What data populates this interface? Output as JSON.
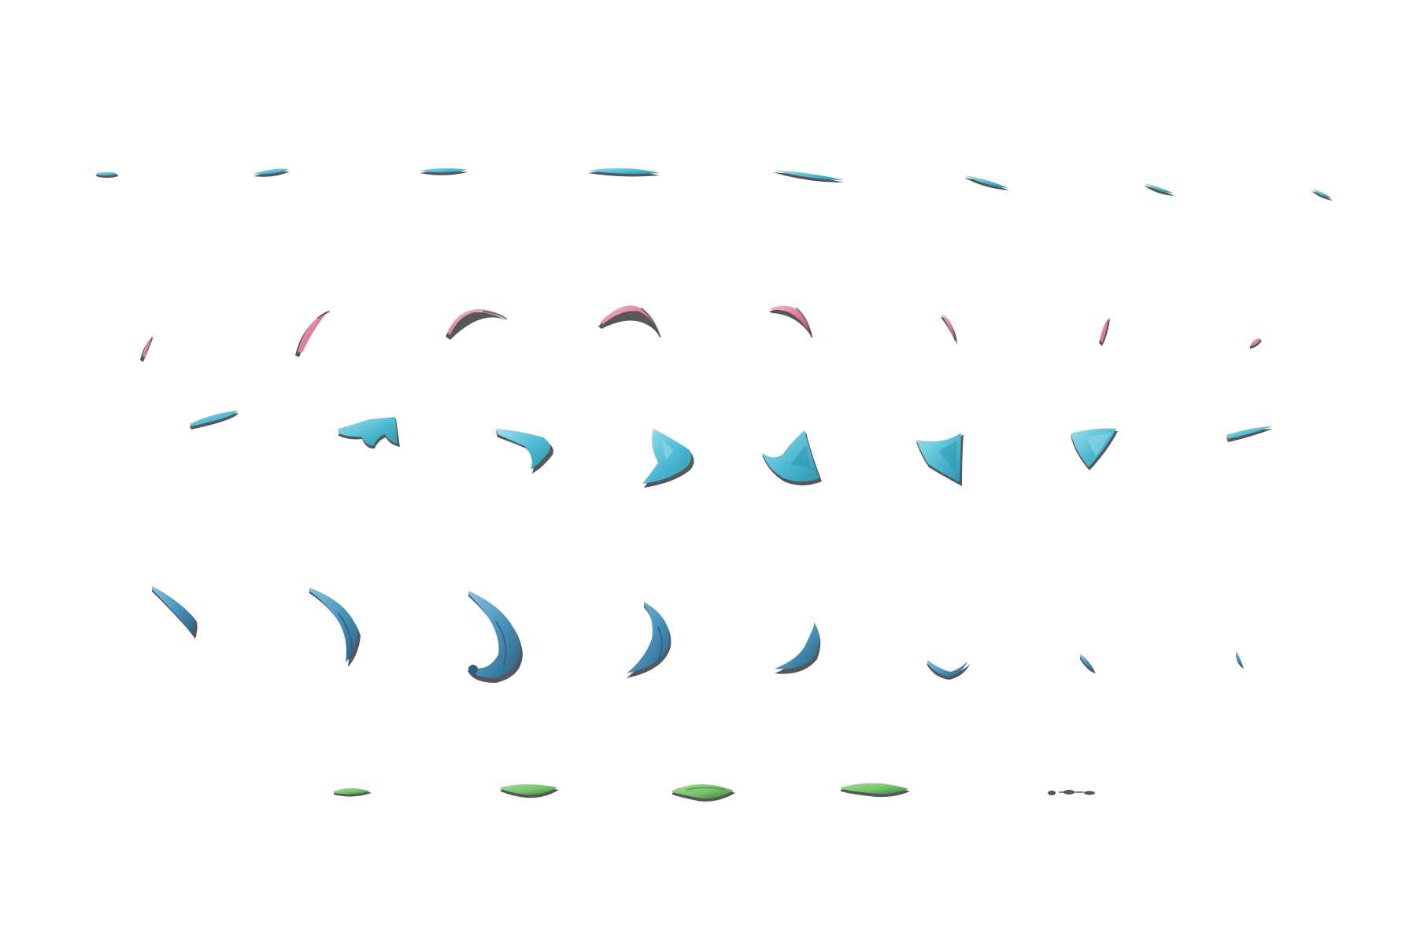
{
  "colors": {
    "cyan": "#4fb9d2",
    "cyan_light": "#8fd6e6",
    "cyan_dark": "#2f93ad",
    "pink": "#d97a9a",
    "pink_light": "#f0b3c7",
    "pink_dark": "#a8506f",
    "steel_blue": "#4b95bd",
    "steel_blue_dark": "#2c5f80",
    "steel_blue_light": "#7cbad9",
    "green": "#74c26a",
    "green_dark": "#3f7d3a",
    "shadow": "#1c1f24"
  },
  "rows": [
    {
      "name": "row-cyan-slivers",
      "color_key": "cyan",
      "count": 8
    },
    {
      "name": "row-pink-arcs",
      "color_key": "pink",
      "count": 8
    },
    {
      "name": "row-cyan-wedges",
      "color_key": "cyan",
      "count": 8
    },
    {
      "name": "row-blue-crescents",
      "color_key": "steel_blue",
      "count": 8
    },
    {
      "name": "row-green-leaves",
      "color_key": "green",
      "count": 5
    }
  ]
}
